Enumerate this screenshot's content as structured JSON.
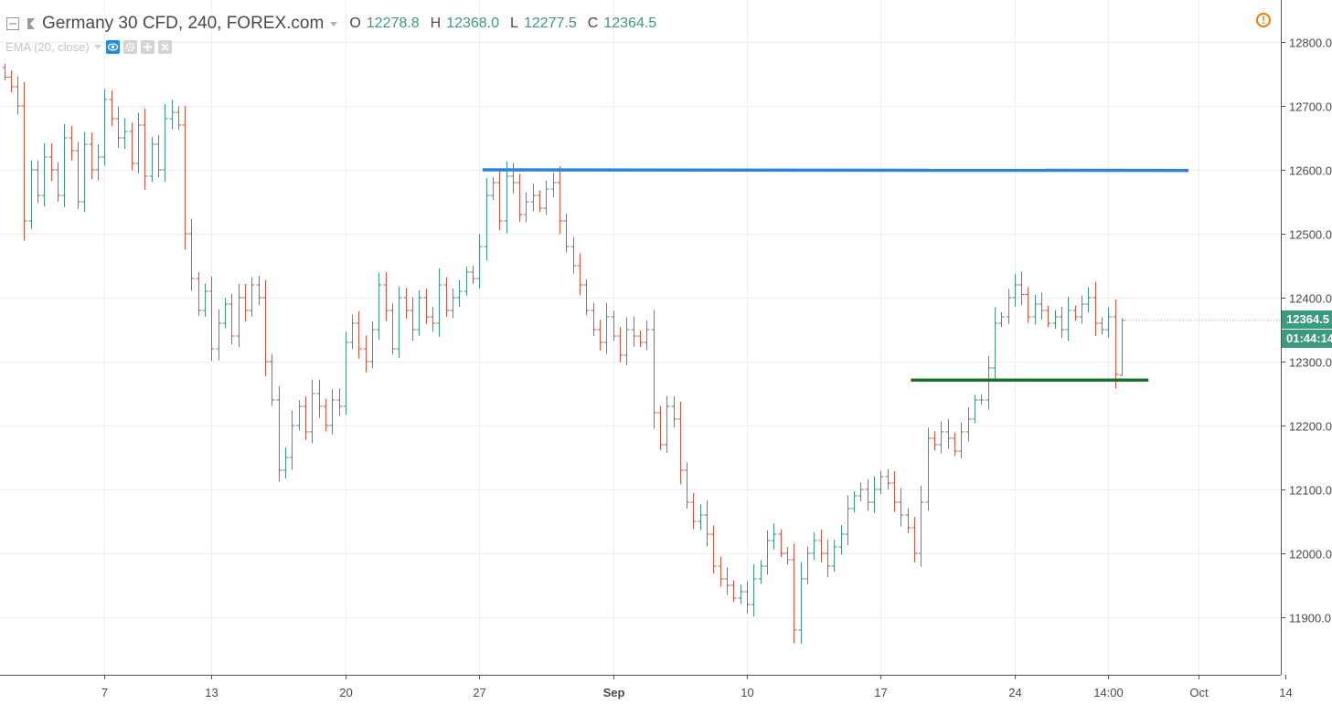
{
  "legend": {
    "title": "Germany 30 CFD, 240, FOREX.com",
    "open_label": "O",
    "open_value": "12278.8",
    "high_label": "H",
    "high_value": "12368.0",
    "low_label": "L",
    "low_value": "12277.5",
    "close_label": "C",
    "close_value": "12364.5"
  },
  "indicator": {
    "label": "EMA (20, close)"
  },
  "icons": {
    "collapse": "collapse-square-icon",
    "symbol_marker": "flag-icon",
    "legend_menu": "caret-down-icon",
    "indicator_menu": "caret-down-icon",
    "visibility": "eye-icon",
    "settings": "gear-icon",
    "more": "plus-icon",
    "remove": "close-icon",
    "warning": "warning-circle-icon"
  },
  "price_badge": {
    "price": "12364.5",
    "countdown": "01:44:14"
  },
  "colors": {
    "up": "#3c9a7e",
    "down": "#e04f3c",
    "resistance_line": "#2d82e0",
    "support_line": "#1e6e2e",
    "grid": "#eeeeee",
    "axis_text": "#4a4a4a",
    "badge": "#3c9a7e"
  },
  "chart_data": {
    "type": "ohlc",
    "title": "Germany 30 CFD, 240, FOREX.com",
    "interval": "240",
    "y_axis_side": "right",
    "ylim": [
      11835,
      12865
    ],
    "y_ticks": [
      "12800.0",
      "12700.0",
      "12600.0",
      "12500.0",
      "12400.0",
      "12300.0",
      "12200.0",
      "12100.0",
      "12000.0",
      "11900.0"
    ],
    "x_ticks": [
      {
        "label": "7",
        "bar": 15,
        "bold": false
      },
      {
        "label": "13",
        "bar": 31,
        "bold": false
      },
      {
        "label": "20",
        "bar": 51,
        "bold": false
      },
      {
        "label": "27",
        "bar": 71,
        "bold": false
      },
      {
        "label": "Sep",
        "bar": 91,
        "bold": true
      },
      {
        "label": "10",
        "bar": 111,
        "bold": false
      },
      {
        "label": "17",
        "bar": 131,
        "bold": false
      },
      {
        "label": "24",
        "bar": 151,
        "bold": false
      },
      {
        "label": "14:00",
        "bar": 165,
        "bold": false
      },
      {
        "label": "Oct",
        "bar": 178.5,
        "bold": false
      },
      {
        "label": "14",
        "bar": 191.5,
        "bold": false
      }
    ],
    "bar_start_open": 12760,
    "bar_closes": [
      12745,
      12730,
      12700,
      12520,
      12600,
      12560,
      12620,
      12600,
      12560,
      12650,
      12630,
      12550,
      12640,
      12600,
      12620,
      12710,
      12680,
      12650,
      12660,
      12610,
      12670,
      12590,
      12640,
      12600,
      12680,
      12690,
      12670,
      12500,
      12430,
      12380,
      12410,
      12320,
      12360,
      12390,
      12340,
      12400,
      12380,
      12420,
      12400,
      12300,
      12240,
      12130,
      12150,
      12200,
      12230,
      12190,
      12250,
      12230,
      12200,
      12240,
      12230,
      12330,
      12360,
      12320,
      12300,
      12350,
      12420,
      12380,
      12320,
      12400,
      12380,
      12350,
      12400,
      12370,
      12360,
      12420,
      12380,
      12400,
      12410,
      12440,
      12430,
      12480,
      12560,
      12580,
      12520,
      12590,
      12580,
      12530,
      12550,
      12560,
      12540,
      12570,
      12580,
      12520,
      12480,
      12450,
      12420,
      12380,
      12350,
      12330,
      12370,
      12340,
      12310,
      12350,
      12340,
      12330,
      12350,
      12220,
      12170,
      12230,
      12210,
      12130,
      12080,
      12050,
      12060,
      12030,
      11980,
      11960,
      11950,
      11930,
      11940,
      11920,
      11960,
      11980,
      12020,
      12030,
      12000,
      11990,
      11880,
      11960,
      12000,
      12020,
      12000,
      11980,
      12010,
      12030,
      12070,
      12090,
      12100,
      12080,
      12100,
      12120,
      12110,
      12080,
      12060,
      12040,
      12000,
      12080,
      12180,
      12170,
      12190,
      12180,
      12160,
      12190,
      12210,
      12240,
      12240,
      12290,
      12360,
      12370,
      12400,
      12420,
      12405,
      12370,
      12390,
      12380,
      12360,
      12370,
      12350,
      12380,
      12370,
      12390,
      12400,
      12360,
      12350,
      12370,
      12280,
      12364.5
    ],
    "trendlines": [
      {
        "name": "resistance",
        "from": {
          "bar": 71.5,
          "price": 12600
        },
        "to": {
          "bar": 177,
          "price": 12599
        }
      },
      {
        "name": "support",
        "from": {
          "bar": 135.5,
          "price": 12271
        },
        "to": {
          "bar": 171,
          "price": 12271
        }
      }
    ]
  }
}
